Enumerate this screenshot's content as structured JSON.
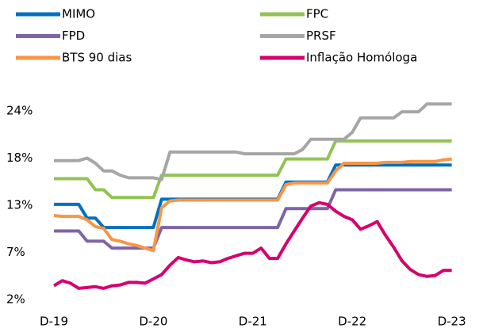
{
  "chart_data": {
    "type": "line",
    "categories": [
      "D-19",
      null,
      null,
      null,
      null,
      null,
      null,
      null,
      null,
      null,
      null,
      null,
      "D-20",
      null,
      null,
      null,
      null,
      null,
      null,
      null,
      null,
      null,
      null,
      null,
      "D-21",
      null,
      null,
      null,
      null,
      null,
      null,
      null,
      null,
      null,
      null,
      null,
      "D-22",
      null,
      null,
      null,
      null,
      null,
      null,
      null,
      null,
      null,
      null,
      null,
      "D-23"
    ],
    "ylim": [
      1.5,
      25.5
    ],
    "yticks": [
      {
        "value": 1.5,
        "label": "2%"
      },
      {
        "value": 7,
        "label": "7%"
      },
      {
        "value": 12.5,
        "label": "13%"
      },
      {
        "value": 18,
        "label": "18%"
      },
      {
        "value": 23.5,
        "label": "24%"
      }
    ],
    "grid": false,
    "legend": "top",
    "series": [
      {
        "name": "MIMO",
        "color": "#0070c0",
        "values": [
          12.6,
          12.6,
          12.6,
          12.6,
          11.0,
          11.0,
          9.9,
          9.9,
          9.9,
          9.9,
          9.9,
          9.9,
          9.9,
          13.2,
          13.2,
          13.2,
          13.2,
          13.2,
          13.2,
          13.2,
          13.2,
          13.2,
          13.2,
          13.2,
          13.2,
          13.2,
          13.2,
          13.2,
          15.2,
          15.2,
          15.2,
          15.2,
          15.2,
          15.2,
          17.2,
          17.2,
          17.2,
          17.2,
          17.2,
          17.2,
          17.2,
          17.2,
          17.2,
          17.2,
          17.2,
          17.2,
          17.2,
          17.2,
          17.2
        ]
      },
      {
        "name": "FPC",
        "color": "#92c353",
        "values": [
          15.6,
          15.6,
          15.6,
          15.6,
          15.6,
          14.3,
          14.3,
          13.4,
          13.4,
          13.4,
          13.4,
          13.4,
          13.4,
          16.0,
          16.0,
          16.0,
          16.0,
          16.0,
          16.0,
          16.0,
          16.0,
          16.0,
          16.0,
          16.0,
          16.0,
          16.0,
          16.0,
          16.0,
          17.9,
          17.9,
          17.9,
          17.9,
          17.9,
          17.9,
          20.0,
          20.0,
          20.0,
          20.0,
          20.0,
          20.0,
          20.0,
          20.0,
          20.0,
          20.0,
          20.0,
          20.0,
          20.0,
          20.0,
          20.0
        ]
      },
      {
        "name": "FPD",
        "color": "#7f64a8",
        "values": [
          9.5,
          9.5,
          9.5,
          9.5,
          8.3,
          8.3,
          8.3,
          7.5,
          7.5,
          7.5,
          7.5,
          7.5,
          7.5,
          9.9,
          9.9,
          9.9,
          9.9,
          9.9,
          9.9,
          9.9,
          9.9,
          9.9,
          9.9,
          9.9,
          9.9,
          9.9,
          9.9,
          9.9,
          12.1,
          12.1,
          12.1,
          12.1,
          12.1,
          12.1,
          14.3,
          14.3,
          14.3,
          14.3,
          14.3,
          14.3,
          14.3,
          14.3,
          14.3,
          14.3,
          14.3,
          14.3,
          14.3,
          14.3,
          14.3
        ]
      },
      {
        "name": "PRSF",
        "color": "#a6a6a6",
        "values": [
          17.7,
          17.7,
          17.7,
          17.7,
          18.0,
          17.4,
          16.5,
          16.5,
          16.0,
          15.7,
          15.7,
          15.7,
          15.7,
          15.5,
          18.7,
          18.7,
          18.7,
          18.7,
          18.7,
          18.7,
          18.7,
          18.7,
          18.7,
          18.5,
          18.5,
          18.5,
          18.5,
          18.5,
          18.5,
          18.5,
          19.0,
          20.2,
          20.2,
          20.2,
          20.2,
          20.2,
          21.0,
          22.7,
          22.7,
          22.7,
          22.7,
          22.7,
          23.4,
          23.4,
          23.4,
          24.3,
          24.3,
          24.3,
          24.3
        ]
      },
      {
        "name": "BTS 90 dias",
        "color": "#f79646",
        "values": [
          11.3,
          11.2,
          11.2,
          11.2,
          10.8,
          10.0,
          9.8,
          8.5,
          8.3,
          8.0,
          7.8,
          7.5,
          7.2,
          12.2,
          13.0,
          13.1,
          13.1,
          13.1,
          13.1,
          13.1,
          13.1,
          13.1,
          13.1,
          13.1,
          13.1,
          13.1,
          13.1,
          13.1,
          14.9,
          15.1,
          15.1,
          15.1,
          15.1,
          15.1,
          16.5,
          17.4,
          17.4,
          17.4,
          17.4,
          17.4,
          17.5,
          17.5,
          17.5,
          17.6,
          17.6,
          17.6,
          17.6,
          17.8,
          17.9
        ]
      },
      {
        "name": "Inflação Homóloga",
        "color": "#d6006e",
        "values": [
          3.1,
          3.7,
          3.4,
          2.8,
          2.9,
          3.0,
          2.8,
          3.1,
          3.2,
          3.5,
          3.5,
          3.4,
          3.9,
          4.4,
          5.5,
          6.4,
          6.1,
          5.9,
          6.0,
          5.8,
          5.9,
          6.3,
          6.6,
          6.9,
          6.9,
          7.5,
          6.3,
          6.3,
          8.0,
          9.5,
          11.0,
          12.4,
          12.8,
          12.6,
          11.8,
          11.2,
          10.8,
          9.7,
          10.1,
          10.6,
          9.0,
          7.6,
          6.0,
          5.0,
          4.4,
          4.2,
          4.3,
          4.9,
          4.9
        ]
      }
    ]
  }
}
